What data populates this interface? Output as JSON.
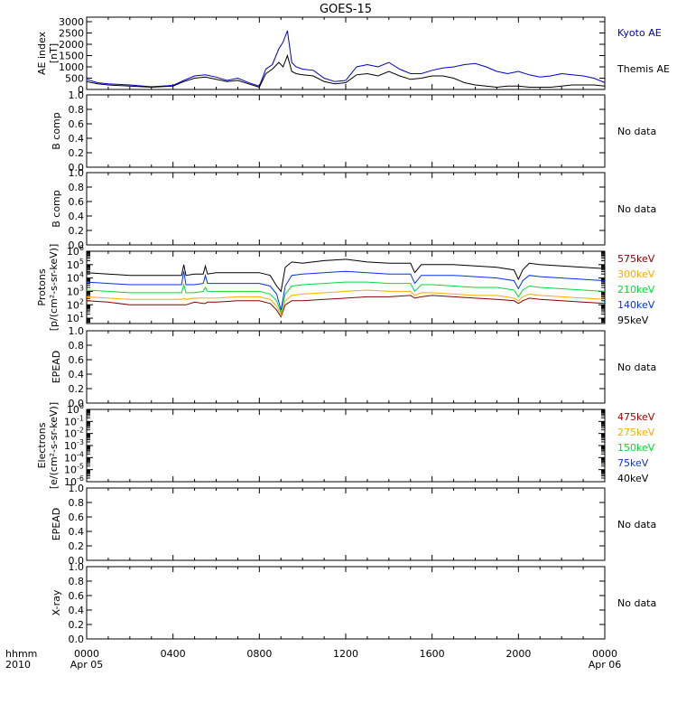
{
  "title": "GOES-15",
  "footer": {
    "left_line1": "hhmm",
    "left_line2": "2010",
    "x_ticks": [
      "0000",
      "0400",
      "0800",
      "1200",
      "1600",
      "2000",
      "0000"
    ],
    "date_start": "Apr 05",
    "date_end": "Apr 06"
  },
  "colors": {
    "blue": "#0000cc",
    "black": "#000000",
    "green": "#00dd33",
    "orange": "#ffaa00",
    "royal": "#0033ee",
    "darkred": "#880000",
    "red": "#aa0000"
  },
  "chart_data": [
    {
      "id": "ae",
      "type": "line",
      "ylabel_line1": "AE index",
      "ylabel_line2": "[nT]",
      "yticks": [
        "0",
        "500",
        "1000",
        "1500",
        "2000",
        "2500",
        "3000"
      ],
      "ylim": [
        0,
        3200
      ],
      "x_unit": "hours since 0000 Apr 05",
      "series": [
        {
          "name": "Kyoto AE",
          "color": "#0000cc",
          "x": [
            0,
            0.5,
            1,
            2,
            3,
            4,
            4.5,
            5,
            5.5,
            6,
            6.5,
            7,
            7.5,
            8,
            8.3,
            8.6,
            8.9,
            9.1,
            9.3,
            9.5,
            9.7,
            10,
            10.5,
            11,
            11.5,
            12,
            12.5,
            13,
            13.5,
            14,
            14.5,
            15,
            15.5,
            16,
            16.5,
            17,
            17.5,
            18,
            18.5,
            19,
            19.5,
            20,
            20.5,
            21,
            21.5,
            22,
            22.5,
            23,
            23.5,
            24
          ],
          "values": [
            450,
            300,
            250,
            200,
            120,
            180,
            400,
            600,
            650,
            550,
            400,
            500,
            300,
            150,
            900,
            1100,
            1800,
            2100,
            2600,
            1200,
            1000,
            900,
            850,
            500,
            350,
            400,
            1000,
            1100,
            1000,
            1200,
            900,
            700,
            700,
            850,
            950,
            1000,
            1100,
            1150,
            1000,
            800,
            700,
            800,
            650,
            550,
            600,
            700,
            650,
            600,
            500,
            300
          ]
        },
        {
          "name": "Themis AE",
          "color": "#000000",
          "x": [
            0,
            0.5,
            1,
            2,
            3,
            4,
            4.5,
            5,
            5.5,
            6,
            6.5,
            7,
            7.5,
            8,
            8.3,
            8.6,
            8.9,
            9.1,
            9.3,
            9.5,
            9.7,
            10,
            10.5,
            11,
            11.5,
            12,
            12.5,
            13,
            13.5,
            14,
            14.5,
            15,
            15.5,
            16,
            16.5,
            17,
            17.5,
            18,
            18.5,
            19,
            19.5,
            20,
            20.5,
            21,
            21.5,
            22,
            22.5,
            23,
            23.5,
            24
          ],
          "values": [
            350,
            250,
            200,
            150,
            100,
            150,
            350,
            500,
            550,
            450,
            350,
            400,
            250,
            100,
            700,
            900,
            1200,
            1000,
            1500,
            800,
            700,
            650,
            600,
            350,
            250,
            300,
            650,
            700,
            600,
            800,
            600,
            450,
            500,
            600,
            600,
            500,
            300,
            200,
            150,
            100,
            150,
            150,
            100,
            100,
            100,
            150,
            200,
            200,
            200,
            150
          ]
        }
      ]
    },
    {
      "id": "b1",
      "type": "line",
      "ylabel_line1": "B comp",
      "yticks": [
        "0.0",
        "0.2",
        "0.4",
        "0.6",
        "0.8",
        "1.0"
      ],
      "ylim": [
        0,
        1
      ],
      "series": [],
      "note": "No data"
    },
    {
      "id": "b2",
      "type": "line",
      "ylabel_line1": "B comp",
      "yticks": [
        "0.0",
        "0.2",
        "0.4",
        "0.6",
        "0.8",
        "1.0"
      ],
      "ylim": [
        0,
        1
      ],
      "series": [],
      "note": "No data"
    },
    {
      "id": "protons",
      "type": "line",
      "ylabel_line1": "Protons",
      "ylabel_line2": "[p/(cm²-s-sr-keV)]",
      "yscale": "log",
      "ylim_exp": [
        0.6,
        6
      ],
      "ytick_exps": [
        1,
        2,
        3,
        4,
        5,
        6
      ],
      "x": [
        0,
        1,
        2,
        3,
        4,
        4.4,
        4.5,
        4.6,
        5,
        5.4,
        5.5,
        5.6,
        6,
        7,
        8,
        8.5,
        8.8,
        9.0,
        9.2,
        9.5,
        10,
        11,
        12,
        13,
        14,
        15,
        15.2,
        15.5,
        16,
        17,
        18,
        19,
        19.8,
        20.0,
        20.2,
        20.5,
        21,
        22,
        23,
        24
      ],
      "series": [
        {
          "name": "575keV",
          "color": "#880000",
          "values": [
            2.3,
            2.2,
            2.0,
            2.0,
            2.0,
            2.0,
            2.0,
            2.0,
            2.2,
            2.1,
            2.1,
            2.2,
            2.2,
            2.3,
            2.3,
            2.1,
            1.6,
            1.1,
            2.0,
            2.3,
            2.3,
            2.4,
            2.5,
            2.6,
            2.6,
            2.7,
            2.5,
            2.6,
            2.7,
            2.6,
            2.5,
            2.4,
            2.3,
            2.1,
            2.3,
            2.5,
            2.4,
            2.3,
            2.2,
            2.1
          ]
        },
        {
          "name": "300keV",
          "color": "#ffaa00",
          "values": [
            2.6,
            2.5,
            2.4,
            2.4,
            2.4,
            2.4,
            2.5,
            2.4,
            2.5,
            2.5,
            2.5,
            2.5,
            2.5,
            2.6,
            2.6,
            2.4,
            1.9,
            1.2,
            2.3,
            2.7,
            2.8,
            2.9,
            3.0,
            3.1,
            3.0,
            3.0,
            2.7,
            2.9,
            2.9,
            2.8,
            2.7,
            2.7,
            2.5,
            2.3,
            2.6,
            2.8,
            2.7,
            2.6,
            2.5,
            2.4
          ]
        },
        {
          "name": "210keV",
          "color": "#00dd33",
          "values": [
            3.1,
            3.0,
            2.9,
            2.9,
            2.9,
            2.9,
            3.5,
            2.9,
            2.9,
            3.0,
            3.3,
            3.0,
            3.0,
            3.0,
            3.0,
            2.8,
            2.3,
            1.4,
            2.8,
            3.4,
            3.5,
            3.6,
            3.7,
            3.7,
            3.6,
            3.6,
            3.0,
            3.5,
            3.5,
            3.4,
            3.3,
            3.3,
            3.1,
            2.6,
            3.1,
            3.4,
            3.3,
            3.2,
            3.1,
            3.0
          ]
        },
        {
          "name": "140keV",
          "color": "#0033ee",
          "values": [
            3.7,
            3.6,
            3.5,
            3.5,
            3.5,
            3.5,
            4.5,
            3.5,
            3.5,
            3.6,
            4.2,
            3.6,
            3.6,
            3.6,
            3.6,
            3.4,
            2.8,
            1.6,
            3.4,
            4.2,
            4.3,
            4.4,
            4.5,
            4.4,
            4.3,
            4.3,
            3.6,
            4.2,
            4.2,
            4.2,
            4.1,
            4.0,
            3.8,
            3.2,
            3.8,
            4.2,
            4.1,
            4.0,
            3.9,
            3.8
          ]
        },
        {
          "name": "95keV",
          "color": "#000000",
          "values": [
            4.4,
            4.3,
            4.2,
            4.2,
            4.2,
            4.2,
            5.0,
            4.2,
            4.3,
            4.3,
            4.9,
            4.3,
            4.4,
            4.4,
            4.4,
            4.2,
            3.4,
            3.0,
            4.8,
            5.2,
            5.1,
            5.3,
            5.4,
            5.2,
            5.1,
            5.1,
            4.4,
            5.0,
            5.0,
            5.0,
            4.9,
            4.8,
            4.6,
            3.9,
            4.6,
            5.1,
            5.0,
            4.9,
            4.8,
            4.7
          ]
        }
      ]
    },
    {
      "id": "epead1",
      "type": "line",
      "ylabel_line1": "EPEAD",
      "yticks": [
        "0.0",
        "0.2",
        "0.4",
        "0.6",
        "0.8",
        "1.0"
      ],
      "ylim": [
        0,
        1
      ],
      "series": [],
      "note": "No data"
    },
    {
      "id": "electrons",
      "type": "line",
      "ylabel_line1": "Electrons",
      "ylabel_line2": "[e/(cm²-s-sr-keV)]",
      "yscale": "log",
      "ylim_exp": [
        -6,
        0
      ],
      "ytick_exps": [
        -6,
        -5,
        -4,
        -3,
        -2,
        -1,
        0
      ],
      "series": [
        {
          "name": "475keV",
          "color": "#aa0000"
        },
        {
          "name": "275keV",
          "color": "#ffaa00"
        },
        {
          "name": "150keV",
          "color": "#00dd33"
        },
        {
          "name": "75keV",
          "color": "#0033ee"
        },
        {
          "name": "40keV",
          "color": "#000000"
        }
      ]
    },
    {
      "id": "epead2",
      "type": "line",
      "ylabel_line1": "EPEAD",
      "yticks": [
        "0.0",
        "0.2",
        "0.4",
        "0.6",
        "0.8",
        "1.0"
      ],
      "ylim": [
        0,
        1
      ],
      "series": [],
      "note": "No data"
    },
    {
      "id": "xray",
      "type": "line",
      "ylabel_line1": "X-ray",
      "yticks": [
        "0.0",
        "0.2",
        "0.4",
        "0.6",
        "0.8",
        "1.0"
      ],
      "ylim": [
        0,
        1
      ],
      "series": [],
      "note": "No data"
    }
  ]
}
